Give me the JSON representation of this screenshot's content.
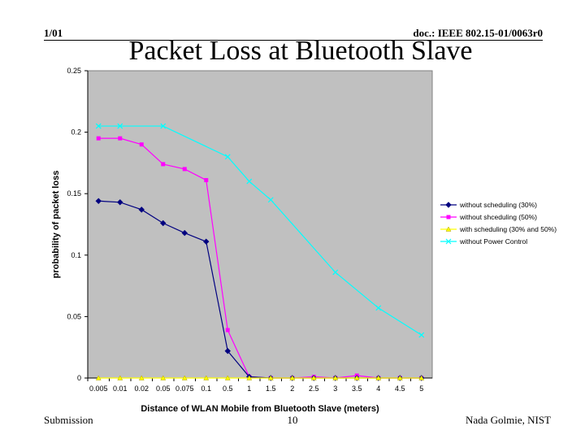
{
  "header": {
    "left": "1/01",
    "right": "doc.: IEEE 802.15-01/0063r0"
  },
  "title": "Packet Loss at Bluetooth Slave",
  "footer": {
    "left": "Submission",
    "center": "10",
    "right": "Nada Golmie, NIST"
  },
  "chart_data": {
    "type": "line",
    "title": "",
    "xlabel": "Distance of WLAN Mobile from Bluetooth Slave (meters)",
    "ylabel": "probability of packet loss",
    "ylim": [
      0,
      0.25
    ],
    "yticks": [
      0,
      0.05,
      0.1,
      0.15,
      0.2,
      0.25
    ],
    "ytick_labels": [
      "0",
      "0.05",
      "0.1",
      "0.15",
      "0.2",
      "0.25"
    ],
    "categories": [
      "0.005",
      "0.01",
      "0.02",
      "0.05",
      "0.075",
      "0.1",
      "0.5",
      "1",
      "1.5",
      "2",
      "2.5",
      "3",
      "3.5",
      "4",
      "4.5",
      "5"
    ],
    "plot_background": "#c0c0c0",
    "legend_position": "right",
    "series": [
      {
        "name": "without scheduling (30%)",
        "color": "#000080",
        "marker": "diamond",
        "values": [
          0.144,
          0.143,
          0.137,
          0.126,
          0.118,
          0.111,
          0.022,
          0.001,
          0.0,
          0.0,
          0.0,
          0.0,
          0.0,
          0.0,
          0.0,
          0.0
        ]
      },
      {
        "name": "without shceduling (50%)",
        "color": "#ff00ff",
        "marker": "square",
        "values": [
          0.195,
          0.195,
          0.19,
          0.174,
          0.17,
          0.161,
          0.039,
          0.001,
          0.0,
          0.0,
          0.001,
          0.0,
          0.002,
          0.0,
          0.0,
          0.0
        ]
      },
      {
        "name": "with scheduling (30% and 50%)",
        "color": "#ffff00",
        "marker": "triangle",
        "values": [
          0,
          0,
          0,
          0,
          0,
          0,
          0,
          0,
          0,
          0,
          0,
          0,
          0,
          0,
          0,
          0
        ]
      },
      {
        "name": "without Power Control",
        "color": "#00ffff",
        "marker": "x",
        "values": [
          0.205,
          0.205,
          null,
          0.205,
          null,
          null,
          0.18,
          0.16,
          0.145,
          null,
          null,
          0.086,
          null,
          0.057,
          null,
          0.035
        ]
      }
    ]
  }
}
